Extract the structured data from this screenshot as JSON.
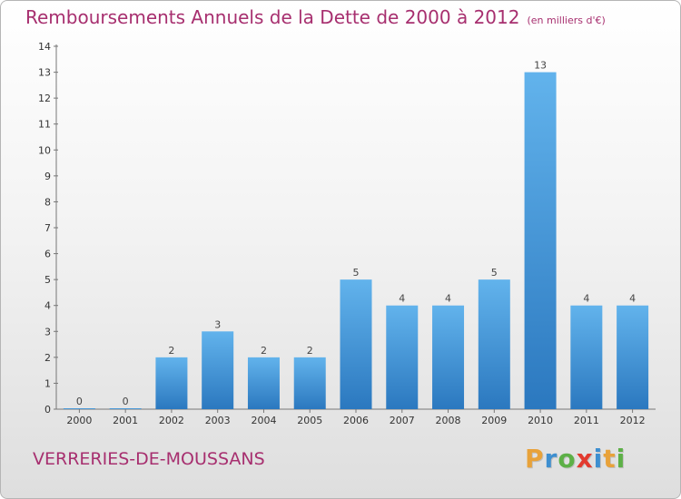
{
  "title": "Remboursements Annuels de la Dette de 2000 à 2012",
  "unit_note": "(en milliers d'€)",
  "commune": "VERRERIES-DE-MOUSSANS",
  "logo": {
    "letters": [
      "P",
      "r",
      "o",
      "x",
      "i",
      "t",
      "i"
    ],
    "colors": [
      "#e8a23a",
      "#3e8fd0",
      "#5db047",
      "#e23a2f",
      "#3e8fd0",
      "#e8a23a",
      "#5db047"
    ]
  },
  "colors": {
    "bar_light": "#62b3ec",
    "bar_dark": "#2b78bf",
    "title": "#a72f6f"
  },
  "chart_data": {
    "type": "bar",
    "categories": [
      "2000",
      "2001",
      "2002",
      "2003",
      "2004",
      "2005",
      "2006",
      "2007",
      "2008",
      "2009",
      "2010",
      "2011",
      "2012"
    ],
    "values": [
      0,
      0,
      2,
      3,
      2,
      2,
      5,
      4,
      4,
      5,
      13,
      4,
      4
    ],
    "value_labels": [
      "0",
      "0",
      "2",
      "3",
      "2",
      "2",
      "5",
      "4",
      "4",
      "5",
      "13",
      "4",
      "4"
    ],
    "yticks": [
      "0",
      "1",
      "2",
      "3",
      "4",
      "5",
      "6",
      "7",
      "8",
      "9",
      "10",
      "11",
      "12",
      "13",
      "14"
    ],
    "ylim": [
      0,
      14
    ],
    "grid": false
  }
}
